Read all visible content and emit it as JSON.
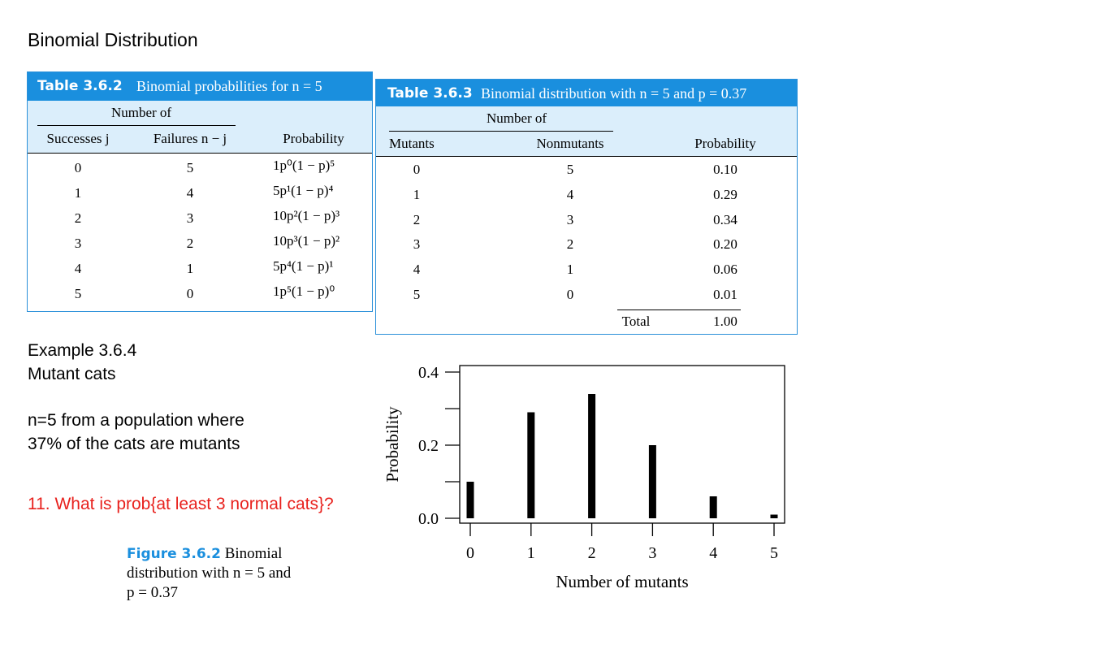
{
  "slide": {
    "title": "Binomial Distribution",
    "example_title": "Example 3.6.4",
    "example_subtitle": "Mutant cats",
    "description_line1": "n=5 from a population where",
    "description_line2": "37% of the cats are mutants",
    "question": "11. What is prob{at least 3 normal cats}?",
    "question_color": "#e8211d"
  },
  "table1": {
    "label": "Table 3.6.2",
    "caption": "Binomial probabilities for n = 5",
    "group_header": "Number of",
    "columns": [
      "Successes j",
      "Failures n − j",
      "Probability"
    ],
    "rows": [
      [
        "0",
        "5",
        "1p⁰(1 − p)⁵"
      ],
      [
        "1",
        "4",
        "5p¹(1 − p)⁴"
      ],
      [
        "2",
        "3",
        "10p²(1 − p)³"
      ],
      [
        "3",
        "2",
        "10p³(1 − p)²"
      ],
      [
        "4",
        "1",
        "5p⁴(1 − p)¹"
      ],
      [
        "5",
        "0",
        "1p⁵(1 − p)⁰"
      ]
    ]
  },
  "table2": {
    "label": "Table 3.6.3",
    "caption": "Binomial distribution with n = 5 and p = 0.37",
    "group_header": "Number of",
    "columns": [
      "Mutants",
      "Nonmutants",
      "Probability"
    ],
    "rows": [
      [
        "0",
        "5",
        "0.10"
      ],
      [
        "1",
        "4",
        "0.29"
      ],
      [
        "2",
        "3",
        "0.34"
      ],
      [
        "3",
        "2",
        "0.20"
      ],
      [
        "4",
        "1",
        "0.06"
      ],
      [
        "5",
        "0",
        "0.01"
      ]
    ],
    "total_label": "Total",
    "total_value": "1.00"
  },
  "figure": {
    "label": "Figure 3.6.2",
    "caption_line1": "Binomial",
    "caption_line2": "distribution with n = 5 and",
    "caption_line3": "p = 0.37"
  },
  "chart_data": {
    "type": "bar",
    "categories": [
      "0",
      "1",
      "2",
      "3",
      "4",
      "5"
    ],
    "values": [
      0.1,
      0.29,
      0.34,
      0.2,
      0.06,
      0.01
    ],
    "xlabel": "Number of mutants",
    "ylabel": "Probability",
    "ylim": [
      0,
      0.4
    ],
    "y_ticks": [
      "0.0",
      "0.2",
      "0.4"
    ],
    "y_tick_values": [
      0.0,
      0.2,
      0.4
    ],
    "y_minor_tick_values": [
      0.1,
      0.3
    ],
    "grid": false,
    "bar_color": "#000000"
  }
}
